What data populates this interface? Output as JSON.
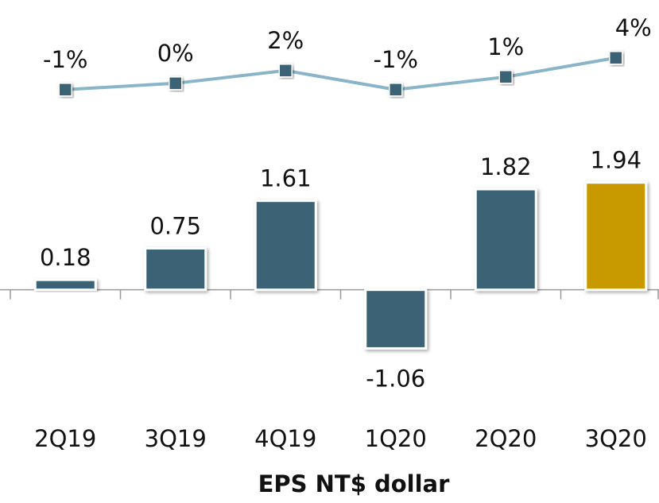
{
  "chart_data": {
    "type": "bar",
    "title": "EPS NT$ dollar",
    "categories": [
      "2Q19",
      "3Q19",
      "4Q19",
      "1Q20",
      "2Q20",
      "3Q20"
    ],
    "series": [
      {
        "type": "bar",
        "colors": [
          "#3a6275",
          "#3a6275",
          "#3a6275",
          "#3a6275",
          "#3a6275",
          "#c89a00"
        ],
        "values": [
          0.18,
          0.75,
          1.61,
          -1.06,
          1.82,
          1.94
        ]
      },
      {
        "type": "line",
        "axis": "y2",
        "color": "#8ab4c8",
        "marker_color": "#3a6275",
        "values": [
          -1,
          0,
          2,
          -1,
          1,
          4
        ],
        "value_labels": [
          "-1%",
          "0%",
          "2%",
          "-1%",
          "1%",
          "4%"
        ]
      }
    ],
    "ylim": [
      -1.6,
      3.1
    ],
    "y2lim": [
      -4.4,
      8.1
    ]
  }
}
